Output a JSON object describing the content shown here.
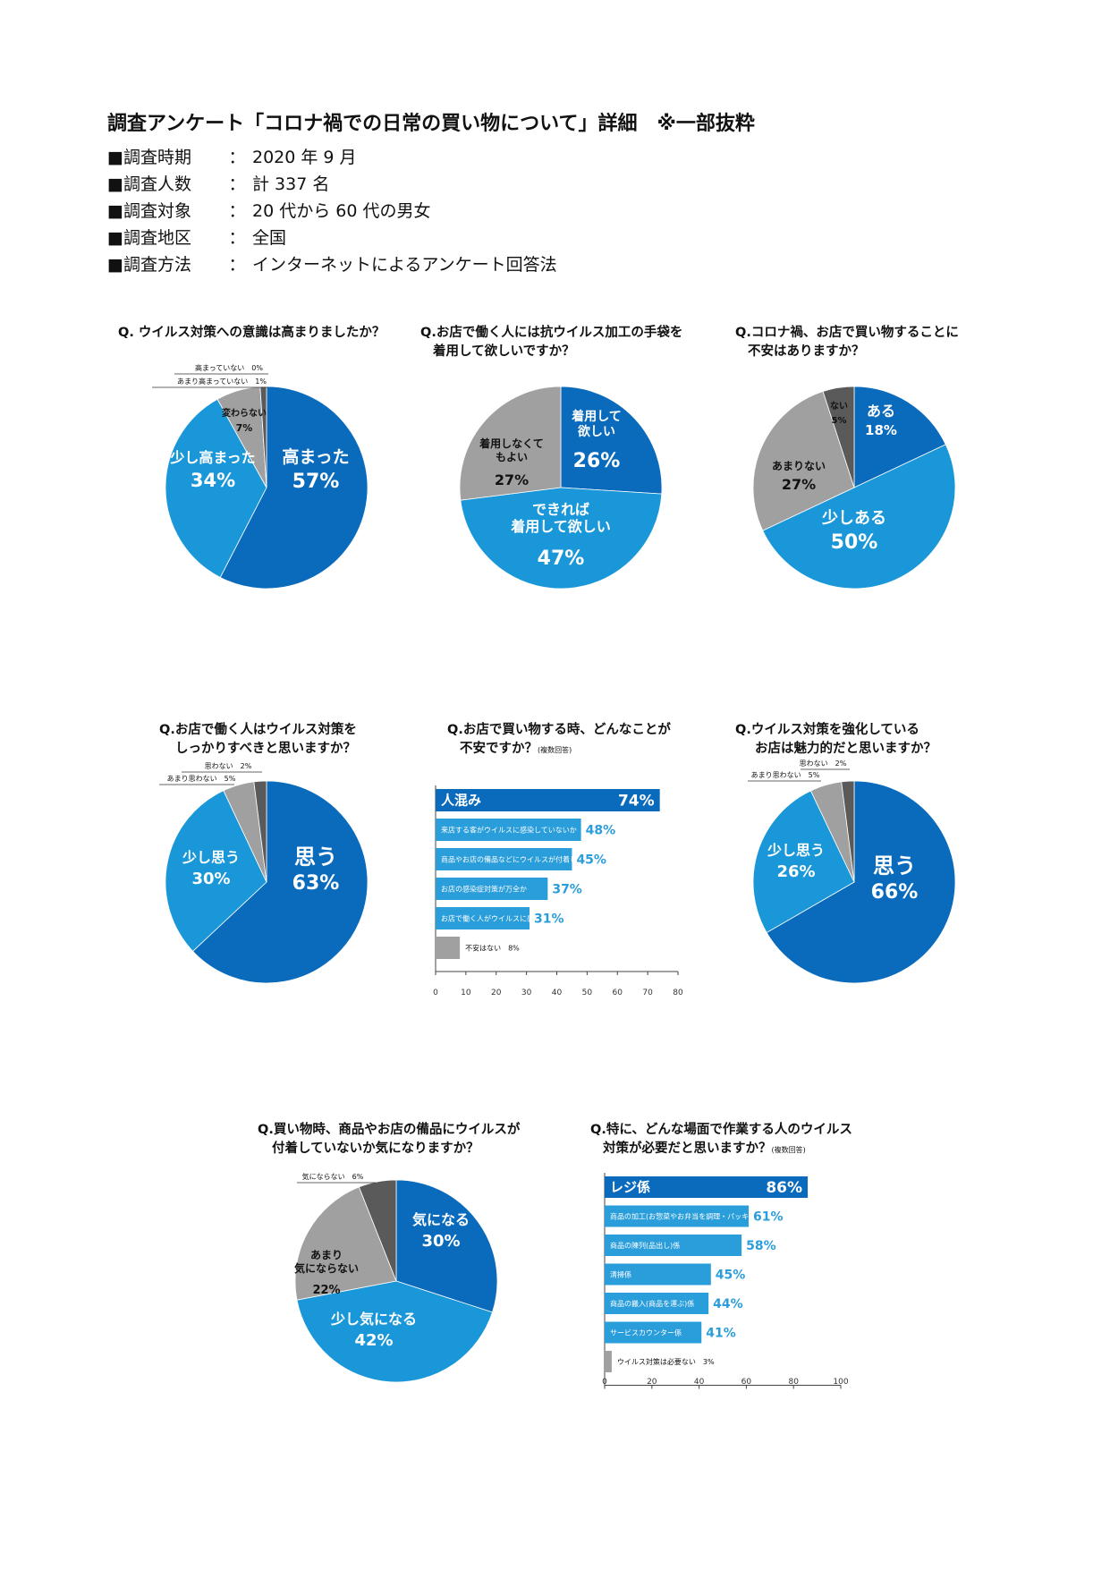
{
  "header": {
    "title": "調査アンケート「コロナ禍での日常の買い物について」詳細　※一部抜粋",
    "info": [
      {
        "label": "■調査時期",
        "value": "2020 年 9 月"
      },
      {
        "label": "■調査人数",
        "value": "計 337 名"
      },
      {
        "label": "■調査対象",
        "value": "20 代から 60 代の男女"
      },
      {
        "label": "■調査地区",
        "value": "全国"
      },
      {
        "label": "■調査方法",
        "value": "インターネットによるアンケート回答法"
      }
    ],
    "separator": "："
  },
  "colors": {
    "dark_blue": "#0a6bbd",
    "light_blue": "#1a97d8",
    "gray": "#a0a0a0",
    "dark_gray": "#5a5a5a",
    "bar_blue": "#2a9ddb",
    "bar_dark": "#0a6bbd"
  },
  "chart_data": [
    {
      "type": "pie",
      "title_line1": "Q. ウイルス対策への意識は高まりましたか？",
      "title_line2": "",
      "slices": [
        {
          "label": "高まった",
          "value": 57,
          "display": "57%"
        },
        {
          "label": "少し高まった",
          "value": 34,
          "display": "34%"
        },
        {
          "label": "変わらない",
          "value": 7,
          "display": "7%"
        },
        {
          "label": "あまり高まっていない",
          "value": 1,
          "display": "1%"
        },
        {
          "label": "高まっていない",
          "value": 0,
          "display": "0%"
        }
      ]
    },
    {
      "type": "pie",
      "title_line1": "Q.お店で働く人には抗ウイルス加工の手袋を",
      "title_line2": "着用して欲しいですか？",
      "slices": [
        {
          "label": "着用して欲しい",
          "value": 26,
          "display": "26%"
        },
        {
          "label": "できれば着用して欲しい",
          "value": 47,
          "display": "47%"
        },
        {
          "label": "着用しなくてもよい",
          "value": 27,
          "display": "27%"
        }
      ]
    },
    {
      "type": "pie",
      "title_line1": "Q.コロナ禍、お店で買い物することに",
      "title_line2": "不安はありますか？",
      "slices": [
        {
          "label": "ある",
          "value": 18,
          "display": "18%"
        },
        {
          "label": "少しある",
          "value": 50,
          "display": "50%"
        },
        {
          "label": "あまりない",
          "value": 27,
          "display": "27%"
        },
        {
          "label": "ない",
          "value": 5,
          "display": "5%"
        }
      ]
    },
    {
      "type": "pie",
      "title_line1": "Q.お店で働く人はウイルス対策を",
      "title_line2": "しっかりすべきと思いますか？",
      "slices": [
        {
          "label": "思う",
          "value": 63,
          "display": "63%"
        },
        {
          "label": "少し思う",
          "value": 30,
          "display": "30%"
        },
        {
          "label": "あまり思わない",
          "value": 5,
          "display": "5%"
        },
        {
          "label": "思わない",
          "value": 2,
          "display": "2%"
        }
      ]
    },
    {
      "type": "bar",
      "orientation": "horizontal",
      "title_line1": "Q.お店で買い物する時、どんなことが",
      "title_line2": "不安ですか？",
      "note": "(複数回答)",
      "xlim": [
        0,
        80
      ],
      "xticks": [
        0,
        10,
        20,
        30,
        40,
        50,
        60,
        70,
        80
      ],
      "bars": [
        {
          "label": "人混み",
          "value": 74,
          "display": "74%"
        },
        {
          "label": "来店する客がウイルスに感染していないか",
          "value": 48,
          "display": "48%"
        },
        {
          "label": "商品やお店の備品などにウイルスが付着していないか",
          "value": 45,
          "display": "45%"
        },
        {
          "label": "お店の感染症対策が万全か",
          "value": 37,
          "display": "37%"
        },
        {
          "label": "お店で働く人がウイルスに感染していないか",
          "value": 31,
          "display": "31%"
        },
        {
          "label": "不安はない",
          "value": 8,
          "display": "8%"
        }
      ]
    },
    {
      "type": "pie",
      "title_line1": "Q.ウイルス対策を強化している",
      "title_line2": "お店は魅力的だと思いますか？",
      "slices": [
        {
          "label": "思う",
          "value": 66,
          "display": "66%"
        },
        {
          "label": "少し思う",
          "value": 26,
          "display": "26%"
        },
        {
          "label": "あまり思わない",
          "value": 5,
          "display": "5%"
        },
        {
          "label": "思わない",
          "value": 2,
          "display": "2%"
        }
      ]
    },
    {
      "type": "pie",
      "title_line1": "Q.買い物時、商品やお店の備品にウイルスが",
      "title_line2": "付着していないか気になりますか？",
      "slices": [
        {
          "label": "気になる",
          "value": 30,
          "display": "30%"
        },
        {
          "label": "少し気になる",
          "value": 42,
          "display": "42%"
        },
        {
          "label": "あまり気にならない",
          "value": 22,
          "display": "22%"
        },
        {
          "label": "気にならない",
          "value": 6,
          "display": "6%"
        }
      ]
    },
    {
      "type": "bar",
      "orientation": "horizontal",
      "title_line1": "Q.特に、どんな場面で作業する人のウイルス",
      "title_line2": "対策が必要だと思いますか？",
      "note": "(複数回答)",
      "xlim": [
        0,
        100
      ],
      "xticks": [
        0,
        20,
        40,
        60,
        80,
        100
      ],
      "bars": [
        {
          "label": "レジ係",
          "value": 86,
          "display": "86%"
        },
        {
          "label": "商品の加工(お惣菜やお弁当を調理・パッキングする)係",
          "value": 61,
          "display": "61%"
        },
        {
          "label": "商品の陳列(品出し)係",
          "value": 58,
          "display": "58%"
        },
        {
          "label": "清掃係",
          "value": 45,
          "display": "45%"
        },
        {
          "label": "商品の搬入(商品を運ぶ)係",
          "value": 44,
          "display": "44%"
        },
        {
          "label": "サービスカウンター係",
          "value": 41,
          "display": "41%"
        },
        {
          "label": "ウイルス対策は必要ない",
          "value": 3,
          "display": "3%"
        }
      ]
    }
  ]
}
